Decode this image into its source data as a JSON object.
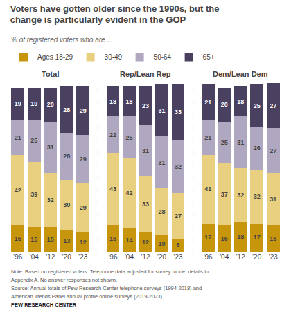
{
  "title": "Voters have gotten older since the 1990s, but the\nchange is particularly evident in the GOP",
  "subtitle": "% of registered voters who are ...",
  "notes": [
    "Note: Based on registered voters. Telephone data adjusted for survey mode; details in",
    "Appendix A. No answer responses not shown.",
    "Source: Annual totals of Pew Research Center telephone surveys (1994-2018) and",
    "American Trends Panel annual profile online surveys (2019-2023)."
  ],
  "source": "PEW RESEARCH CENTER",
  "chart_data": [
    {
      "type": "bar",
      "stacked": true,
      "title": "Total",
      "categories": [
        "'96",
        "'04",
        "'12",
        "'20",
        "'23"
      ],
      "series": [
        {
          "name": "Ages 18-29",
          "color": "#c8960c",
          "values": [
            16,
            15,
            15,
            13,
            12
          ]
        },
        {
          "name": "30-49",
          "color": "#e8d080",
          "values": [
            42,
            39,
            32,
            30,
            29
          ]
        },
        {
          "name": "50-64",
          "color": "#b0a8c0",
          "values": [
            21,
            25,
            31,
            28,
            29
          ]
        },
        {
          "name": "65+",
          "color": "#4a4060",
          "values": [
            19,
            19,
            20,
            28,
            29
          ]
        }
      ],
      "ylim": [
        0,
        101
      ],
      "data_labels": true,
      "tick_labels": "x",
      "grid": false
    },
    {
      "type": "bar",
      "stacked": true,
      "title": "Rep/Lean Rep",
      "categories": [
        "'96",
        "'04",
        "'12",
        "'20",
        "'23"
      ],
      "series": [
        {
          "name": "Ages 18-29",
          "color": "#c8960c",
          "values": [
            16,
            14,
            12,
            10,
            8
          ]
        },
        {
          "name": "30-49",
          "color": "#e8d080",
          "values": [
            43,
            42,
            33,
            28,
            27
          ]
        },
        {
          "name": "50-64",
          "color": "#b0a8c0",
          "values": [
            22,
            25,
            31,
            31,
            32
          ]
        },
        {
          "name": "65+",
          "color": "#4a4060",
          "values": [
            18,
            18,
            23,
            31,
            33
          ]
        }
      ],
      "ylim": [
        0,
        101
      ],
      "data_labels": true,
      "tick_labels": "x",
      "grid": false
    },
    {
      "type": "bar",
      "stacked": true,
      "title": "Dem/Lean Dem",
      "categories": [
        "'96",
        "'04",
        "'12",
        "'20",
        "'23"
      ],
      "series": [
        {
          "name": "Ages 18-29",
          "color": "#c8960c",
          "values": [
            17,
            16,
            18,
            17,
            16
          ]
        },
        {
          "name": "30-49",
          "color": "#e8d080",
          "values": [
            41,
            37,
            32,
            32,
            31
          ]
        },
        {
          "name": "50-64",
          "color": "#b0a8c0",
          "values": [
            21,
            25,
            31,
            26,
            27
          ]
        },
        {
          "name": "65+",
          "color": "#4a4060",
          "values": [
            21,
            20,
            18,
            25,
            27
          ]
        }
      ],
      "ylim": [
        0,
        101
      ],
      "data_labels": true,
      "tick_labels": "x",
      "grid": false
    }
  ]
}
